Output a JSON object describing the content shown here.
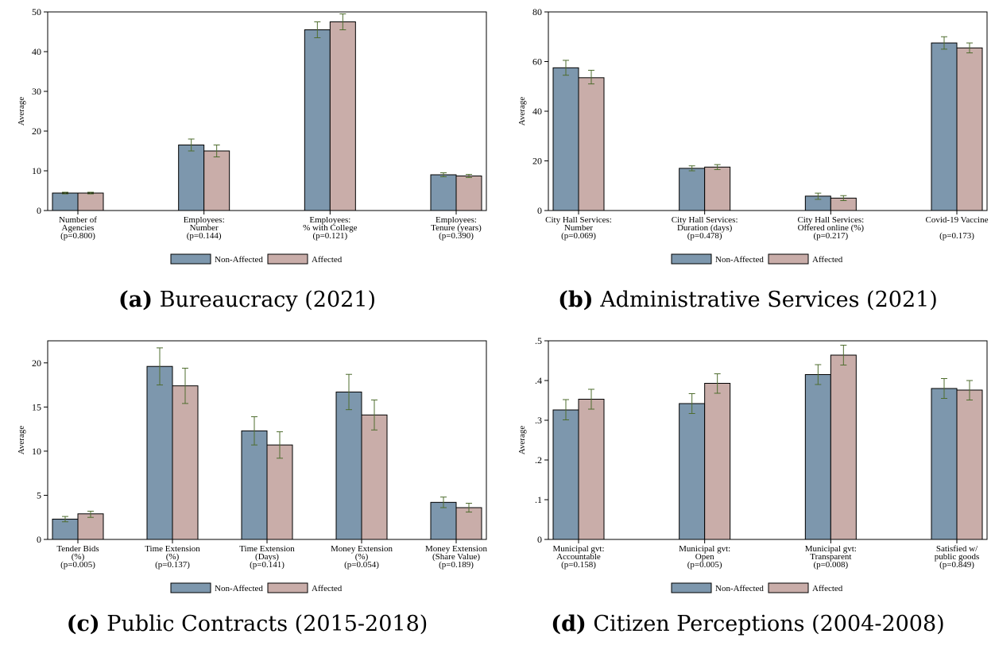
{
  "colors": {
    "non_affected": "#7d97ad",
    "affected": "#c9ada9",
    "error_bar": "#4f6d2f"
  },
  "chart_data": [
    {
      "id": "a",
      "type": "bar",
      "caption_letter": "(a)",
      "caption_title": "Bureaucracy (2021)",
      "ylabel": "Average",
      "ylim": [
        0,
        50
      ],
      "yticks": [
        "0",
        "10",
        "20",
        "30",
        "40",
        "50"
      ],
      "ytick_values": [
        0,
        10,
        20,
        30,
        40,
        50
      ],
      "categories": [
        [
          "Number of",
          "Agencies",
          "(p=0.800)"
        ],
        [
          "Employees:",
          "Number",
          "(p=0.144)"
        ],
        [
          "Employees:",
          "% with College",
          "(p=0.121)"
        ],
        [
          "Employees:",
          "Tenure (years)",
          "(p=0.390)"
        ]
      ],
      "series": [
        {
          "name": "Non-Affected",
          "values": [
            4.4,
            16.5,
            45.5,
            9.0
          ],
          "ci_low": [
            4.2,
            15.0,
            43.5,
            8.5
          ],
          "ci_high": [
            4.6,
            18.0,
            47.5,
            9.5
          ]
        },
        {
          "name": "Affected",
          "values": [
            4.4,
            15.0,
            47.5,
            8.7
          ],
          "ci_low": [
            4.2,
            13.5,
            45.5,
            8.3
          ],
          "ci_high": [
            4.6,
            16.5,
            49.5,
            9.1
          ]
        }
      ],
      "legend": [
        "Non-Affected",
        "Affected"
      ]
    },
    {
      "id": "b",
      "type": "bar",
      "caption_letter": "(b)",
      "caption_title": "Administrative Services (2021)",
      "ylabel": "Average",
      "ylim": [
        0,
        80
      ],
      "yticks": [
        "0",
        "20",
        "40",
        "60",
        "80"
      ],
      "ytick_values": [
        0,
        20,
        40,
        60,
        80
      ],
      "categories": [
        [
          "City Hall Services:",
          "Number",
          "(p=0.069)"
        ],
        [
          "City Hall Services:",
          "Duration (days)",
          "(p=0.478)"
        ],
        [
          "City Hall Services:",
          "Offered online (%)",
          "(p=0.217)"
        ],
        [
          "Covid-19 Vaccine",
          "",
          "(p=0.173)"
        ]
      ],
      "series": [
        {
          "name": "Non-Affected",
          "values": [
            57.5,
            17.0,
            5.8,
            67.5
          ],
          "ci_low": [
            54.5,
            16.0,
            4.5,
            65.0
          ],
          "ci_high": [
            60.5,
            18.0,
            7.0,
            70.0
          ]
        },
        {
          "name": "Affected",
          "values": [
            53.5,
            17.5,
            5.0,
            65.5
          ],
          "ci_low": [
            51.0,
            16.5,
            4.0,
            63.5
          ],
          "ci_high": [
            56.5,
            18.5,
            6.0,
            67.5
          ]
        }
      ],
      "legend": [
        "Non-Affected",
        "Affected"
      ]
    },
    {
      "id": "c",
      "type": "bar",
      "caption_letter": "(c)",
      "caption_title": "Public Contracts (2015-2018)",
      "ylabel": "Average",
      "ylim": [
        0,
        22.5
      ],
      "yticks": [
        "0",
        "5",
        "10",
        "15",
        "20"
      ],
      "ytick_values": [
        0,
        5,
        10,
        15,
        20
      ],
      "categories": [
        [
          "Tender Bids",
          "(%)",
          "(p=0.005)"
        ],
        [
          "Time Extension",
          "(%)",
          "(p=0.137)"
        ],
        [
          "Time Extension",
          "(Days)",
          "(p=0.141)"
        ],
        [
          "Money Extension",
          "(%)",
          "(p=0.054)"
        ],
        [
          "Money Extension",
          "(Share Value)",
          "(p=0.189)"
        ]
      ],
      "series": [
        {
          "name": "Non-Affected",
          "values": [
            2.3,
            19.6,
            12.3,
            16.7,
            4.2
          ],
          "ci_low": [
            2.0,
            17.5,
            10.7,
            14.7,
            3.6
          ],
          "ci_high": [
            2.6,
            21.7,
            13.9,
            18.7,
            4.8
          ]
        },
        {
          "name": "Affected",
          "values": [
            2.9,
            17.4,
            10.7,
            14.1,
            3.6
          ],
          "ci_low": [
            2.5,
            15.4,
            9.2,
            12.4,
            3.1
          ],
          "ci_high": [
            3.2,
            19.4,
            12.2,
            15.8,
            4.1
          ]
        }
      ],
      "legend": [
        "Non-Affected",
        "Affected"
      ]
    },
    {
      "id": "d",
      "type": "bar",
      "caption_letter": "(d)",
      "caption_title": "Citizen Perceptions (2004-2008)",
      "ylabel": "Average",
      "ylim": [
        0,
        0.5
      ],
      "yticks": [
        "0",
        ".1",
        ".2",
        ".3",
        ".4",
        ".5"
      ],
      "ytick_values": [
        0,
        0.1,
        0.2,
        0.3,
        0.4,
        0.5
      ],
      "categories": [
        [
          "Municipal gvt:",
          "Accountable",
          "(p=0.158)"
        ],
        [
          "Municipal gvt:",
          "Open",
          "(p=0.005)"
        ],
        [
          "Municipal gvt:",
          "Transparent",
          "(p=0.008)"
        ],
        [
          "Satisfied w/",
          "public goods",
          "(p=0.849)"
        ]
      ],
      "series": [
        {
          "name": "Non-Affected",
          "values": [
            0.326,
            0.342,
            0.415,
            0.38
          ],
          "ci_low": [
            0.301,
            0.317,
            0.39,
            0.355
          ],
          "ci_high": [
            0.352,
            0.367,
            0.44,
            0.405
          ]
        },
        {
          "name": "Affected",
          "values": [
            0.353,
            0.393,
            0.464,
            0.376
          ],
          "ci_low": [
            0.328,
            0.368,
            0.439,
            0.351
          ],
          "ci_high": [
            0.378,
            0.417,
            0.489,
            0.4
          ]
        }
      ],
      "legend": [
        "Non-Affected",
        "Affected"
      ]
    }
  ]
}
